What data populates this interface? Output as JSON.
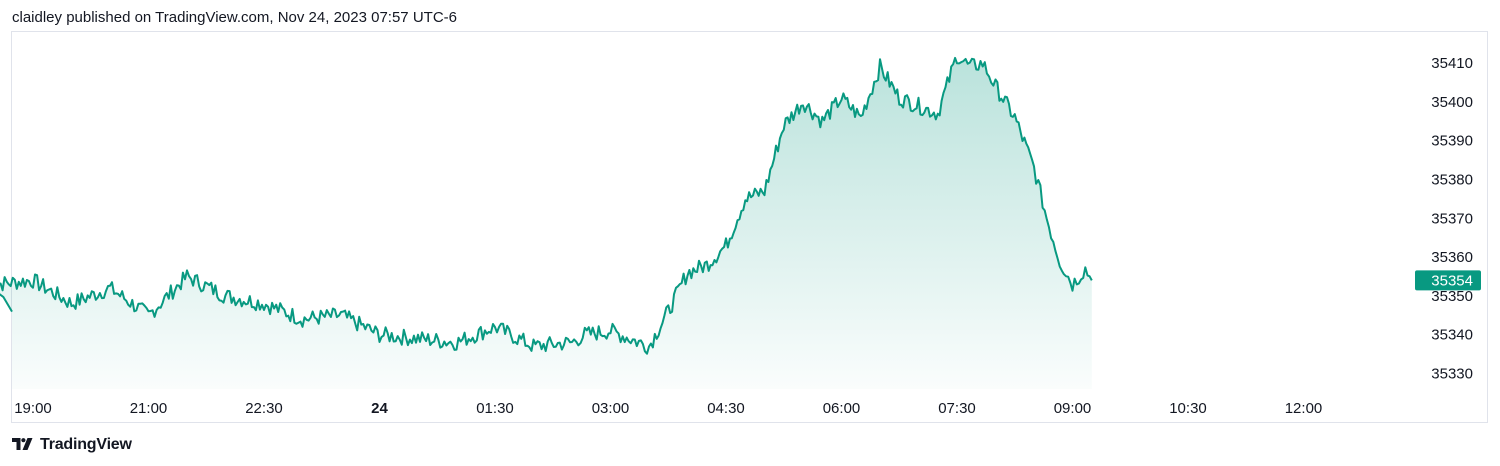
{
  "header": {
    "caption": "claidley published on TradingView.com, Nov 24, 2023 07:57 UTC-6"
  },
  "footer": {
    "brand": "TradingView",
    "logo_icon": "tradingview-logo-icon"
  },
  "colors": {
    "line": "#089981",
    "area_top": "#089981",
    "price_label_bg": "#089981",
    "grid_border": "#e0e3eb"
  },
  "chart_data": {
    "type": "area",
    "x_ticks": [
      "19:00",
      "21:00",
      "22:30",
      "24",
      "01:30",
      "03:00",
      "04:30",
      "06:00",
      "07:30",
      "09:00",
      "10:30",
      "12:00"
    ],
    "x_bold_tick": "24",
    "y_ticks": [
      35330,
      35340,
      35350,
      35360,
      35370,
      35380,
      35390,
      35400,
      35410
    ],
    "ylim": [
      35326,
      35417
    ],
    "last_price": "35354",
    "grid": false,
    "series": [
      {
        "x": [
          "18:00",
          "18:30",
          "19:00",
          "19:30",
          "20:00",
          "20:30",
          "21:00",
          "21:30",
          "22:00",
          "22:30",
          "23:00",
          "23:30",
          "00:00",
          "00:30",
          "01:00",
          "01:30",
          "02:00",
          "02:10",
          "02:30",
          "03:00",
          "03:15",
          "03:30",
          "03:45",
          "04:00",
          "04:15",
          "04:30",
          "04:45",
          "05:00",
          "05:15",
          "05:30",
          "05:45",
          "06:00",
          "06:15",
          "06:30",
          "06:45",
          "07:00",
          "07:10",
          "07:20",
          "07:30",
          "07:45",
          "08:00",
          "08:10",
          "08:20",
          "08:30",
          "08:40",
          "08:45"
        ],
        "values": [
          35346,
          35353,
          35354,
          35348,
          35352,
          35345,
          35355,
          35350,
          35348,
          35344,
          35345,
          35340,
          35339,
          35338,
          35342,
          35337,
          35338,
          35340,
          35341,
          35337,
          35346,
          35356,
          35358,
          35363,
          35375,
          35377,
          35394,
          35400,
          35395,
          35401,
          35396,
          35409,
          35401,
          35399,
          35397,
          35412,
          35409,
          35410,
          35404,
          35396,
          35383,
          35370,
          35359,
          35353,
          35357,
          35354
        ]
      }
    ]
  }
}
